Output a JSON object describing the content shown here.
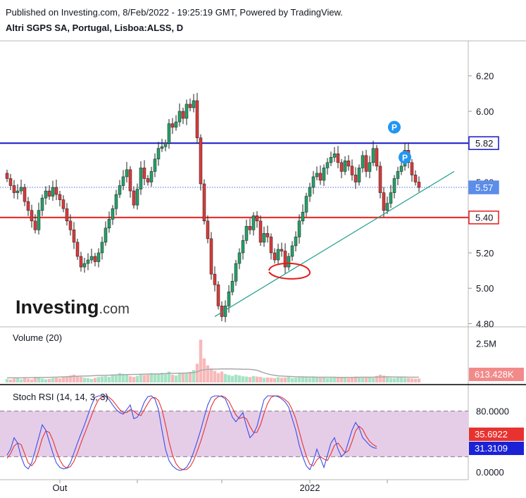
{
  "header": {
    "published": "Published on Investing.com, 8/Feb/2022 - 19:25:19 GMT, Powered by TradingView.",
    "symbol": "Altri SGPS SA, Portugal, Lisboa:ALSS, D"
  },
  "watermark": {
    "brand": "Investing",
    "suffix": ".com"
  },
  "colors": {
    "up": "#26a069",
    "down": "#d93b3b",
    "resistance": "#1515c8",
    "support": "#e51b1b",
    "trend": "#1e9e88",
    "stoch_k": "#3a4ee8",
    "stoch_d": "#e8322f",
    "stoch_band": "#e5cde8",
    "vol_up": "#a7e3c6",
    "vol_down": "#f7b9b9",
    "vol_ma": "#a9a9a9"
  },
  "chart_data": [
    {
      "type": "candlestick",
      "title": "Altri SGPS SA, Portugal, Lisboa:ALSS, D",
      "y_ticks": [
        "6.20",
        "6.00",
        "5.80",
        "5.60",
        "5.40",
        "5.20",
        "5.00",
        "4.80"
      ],
      "ylim": [
        4.79,
        6.39
      ],
      "x_labels": [
        {
          "label": "Out",
          "index": 15
        },
        {
          "label": "2022",
          "index": 86
        }
      ],
      "period_separators": [
        15,
        37,
        61,
        86,
        108
      ],
      "n_bars": 118,
      "price_labels": [
        {
          "value": 5.82,
          "text": "5.82",
          "role": "resistance"
        },
        {
          "value": 5.57,
          "text": "5.57",
          "role": "last"
        },
        {
          "value": 5.4,
          "text": "5.40",
          "role": "support"
        }
      ],
      "horizontal_lines": [
        {
          "value": 5.82,
          "role": "resistance"
        },
        {
          "value": 5.4,
          "role": "support"
        }
      ],
      "last_price_line": 5.57,
      "trend_line": {
        "from": {
          "index": 59,
          "value": 4.84
        },
        "to": {
          "index": 127,
          "value": 5.66
        }
      },
      "markers": [
        {
          "label": "P",
          "index": 110,
          "value": 5.91
        },
        {
          "label": "P",
          "index": 113,
          "value": 5.74
        }
      ],
      "highlight_ellipse": {
        "index": 78,
        "value": 5.1
      },
      "closes": [
        5.62,
        5.58,
        5.54,
        5.55,
        5.57,
        5.49,
        5.44,
        5.38,
        5.33,
        5.44,
        5.51,
        5.55,
        5.52,
        5.57,
        5.53,
        5.5,
        5.45,
        5.38,
        5.33,
        5.26,
        5.18,
        5.12,
        5.14,
        5.16,
        5.18,
        5.15,
        5.2,
        5.26,
        5.34,
        5.39,
        5.45,
        5.53,
        5.58,
        5.63,
        5.67,
        5.55,
        5.47,
        5.56,
        5.68,
        5.62,
        5.6,
        5.66,
        5.73,
        5.79,
        5.8,
        5.82,
        5.93,
        5.91,
        5.94,
        6.0,
        5.96,
        6.04,
        6.02,
        6.06,
        5.85,
        5.59,
        5.38,
        5.28,
        5.08,
        5.02,
        4.9,
        4.84,
        4.9,
        4.98,
        5.04,
        5.14,
        5.2,
        5.27,
        5.35,
        5.33,
        5.41,
        5.38,
        5.26,
        5.31,
        5.29,
        5.2,
        5.16,
        5.22,
        5.21,
        5.12,
        5.18,
        5.24,
        5.29,
        5.38,
        5.43,
        5.52,
        5.57,
        5.63,
        5.65,
        5.61,
        5.68,
        5.71,
        5.74,
        5.76,
        5.71,
        5.66,
        5.72,
        5.69,
        5.64,
        5.6,
        5.68,
        5.75,
        5.66,
        5.71,
        5.79,
        5.69,
        5.54,
        5.44,
        5.48,
        5.54,
        5.62,
        5.66,
        5.69,
        5.78,
        5.71,
        5.64,
        5.6,
        5.57
      ],
      "volume": {
        "label": "Volume (20)",
        "ticks": [
          "2.5M"
        ],
        "last_value": "613.428K",
        "max": 3300000,
        "values": [
          0.22,
          0.18,
          0.25,
          0.3,
          0.2,
          0.28,
          0.24,
          0.19,
          0.35,
          0.3,
          0.25,
          0.2,
          0.22,
          0.28,
          0.3,
          0.26,
          0.33,
          0.38,
          0.45,
          0.5,
          0.42,
          0.36,
          0.3,
          0.28,
          0.22,
          0.3,
          0.35,
          0.38,
          0.4,
          0.36,
          0.5,
          0.45,
          0.6,
          0.55,
          0.48,
          0.4,
          0.36,
          0.42,
          0.55,
          0.48,
          0.5,
          0.6,
          0.52,
          0.58,
          0.62,
          0.55,
          0.7,
          0.5,
          0.45,
          0.6,
          0.58,
          0.62,
          0.68,
          0.8,
          1.2,
          2.75,
          1.55,
          1.1,
          0.9,
          0.75,
          0.6,
          0.7,
          0.55,
          0.48,
          0.42,
          0.5,
          0.45,
          0.4,
          0.38,
          0.35,
          0.42,
          0.38,
          0.36,
          0.3,
          0.32,
          0.3,
          0.28,
          0.34,
          0.3,
          0.32,
          0.36,
          0.28,
          0.3,
          0.33,
          0.35,
          0.38,
          0.3,
          0.32,
          0.34,
          0.3,
          0.36,
          0.28,
          0.3,
          0.33,
          0.32,
          0.35,
          0.3,
          0.28,
          0.32,
          0.38,
          0.34,
          0.3,
          0.36,
          0.32,
          0.3,
          0.42,
          0.5,
          0.44,
          0.38,
          0.3,
          0.28,
          0.32,
          0.35,
          0.3,
          0.28,
          0.26,
          0.24,
          0.25
        ],
        "ma": [
          0.3,
          0.3,
          0.3,
          0.3,
          0.3,
          0.31,
          0.31,
          0.31,
          0.32,
          0.32,
          0.32,
          0.33,
          0.33,
          0.34,
          0.34,
          0.35,
          0.36,
          0.37,
          0.38,
          0.39,
          0.4,
          0.41,
          0.41,
          0.42,
          0.43,
          0.44,
          0.45,
          0.46,
          0.46,
          0.47,
          0.48,
          0.49,
          0.5,
          0.5,
          0.51,
          0.51,
          0.52,
          0.52,
          0.53,
          0.53,
          0.54,
          0.54,
          0.55,
          0.55,
          0.56,
          0.57,
          0.58,
          0.58,
          0.59,
          0.6,
          0.6,
          0.61,
          0.62,
          0.64,
          0.68,
          0.78,
          0.82,
          0.84,
          0.85,
          0.86,
          0.86,
          0.87,
          0.87,
          0.87,
          0.87,
          0.86,
          0.86,
          0.85,
          0.85,
          0.84,
          0.82,
          0.78,
          0.7,
          0.62,
          0.55,
          0.5,
          0.46,
          0.43,
          0.41,
          0.4,
          0.39,
          0.38,
          0.37,
          0.36,
          0.36,
          0.35,
          0.35,
          0.35,
          0.34,
          0.34,
          0.34,
          0.34,
          0.34,
          0.34,
          0.33,
          0.33,
          0.33,
          0.33,
          0.33,
          0.33,
          0.34,
          0.34,
          0.34,
          0.34,
          0.34,
          0.35,
          0.35,
          0.36,
          0.36,
          0.36,
          0.35,
          0.35,
          0.35,
          0.35,
          0.34,
          0.34,
          0.34,
          0.34
        ]
      },
      "stoch_rsi": {
        "label": "Stoch RSI (14, 14, 3, 3)",
        "ticks": [
          "80.0000",
          "0.0000"
        ],
        "band": [
          20,
          80
        ],
        "k_label": "31.3109",
        "d_label": "35.6922",
        "k": [
          22,
          30,
          45,
          38,
          20,
          8,
          4,
          12,
          28,
          45,
          62,
          55,
          40,
          25,
          12,
          6,
          4,
          5,
          12,
          25,
          38,
          50,
          62,
          75,
          88,
          98,
          100,
          100,
          99,
          95,
          88,
          82,
          78,
          76,
          82,
          88,
          70,
          72,
          80,
          92,
          99,
          100,
          96,
          82,
          55,
          30,
          15,
          8,
          4,
          2,
          3,
          6,
          14,
          26,
          40,
          55,
          72,
          88,
          98,
          100,
          100,
          99,
          96,
          85,
          72,
          66,
          72,
          78,
          60,
          45,
          50,
          60,
          78,
          95,
          100,
          100,
          100,
          99,
          96,
          92,
          85,
          70,
          55,
          35,
          20,
          8,
          3,
          14,
          30,
          18,
          6,
          22,
          38,
          45,
          30,
          20,
          25,
          40,
          55,
          65,
          58,
          45,
          40,
          35,
          32,
          31
        ],
        "d": [
          18,
          24,
          34,
          38,
          36,
          24,
          12,
          8,
          14,
          28,
          44,
          54,
          52,
          42,
          28,
          16,
          8,
          5,
          7,
          14,
          25,
          38,
          50,
          62,
          74,
          86,
          95,
          99,
          100,
          98,
          94,
          88,
          82,
          78,
          78,
          82,
          80,
          76,
          74,
          82,
          90,
          97,
          98,
          94,
          82,
          62,
          40,
          22,
          11,
          5,
          3,
          3,
          7,
          15,
          27,
          40,
          55,
          71,
          86,
          95,
          99,
          100,
          98,
          93,
          84,
          75,
          70,
          72,
          70,
          60,
          52,
          52,
          62,
          77,
          90,
          98,
          100,
          100,
          98,
          95,
          91,
          82,
          70,
          53,
          36,
          21,
          10,
          8,
          16,
          20,
          17,
          15,
          24,
          35,
          38,
          32,
          25,
          28,
          40,
          54,
          60,
          56,
          47,
          40,
          36,
          33
        ]
      }
    }
  ]
}
